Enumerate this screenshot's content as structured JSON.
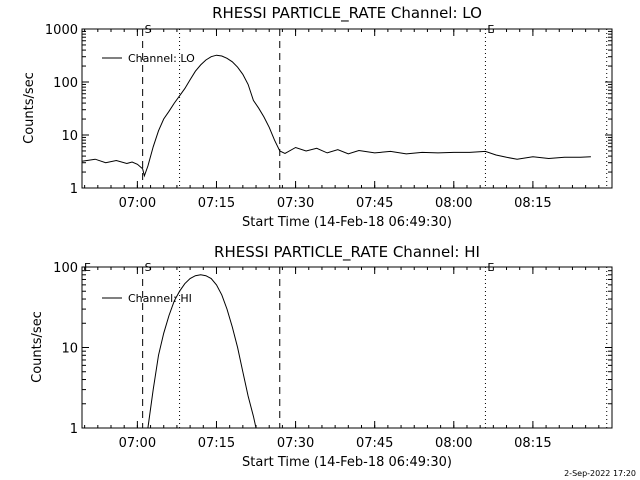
{
  "chart_data": [
    {
      "type": "line",
      "title": "RHESSI PARTICLE_RATE Channel: LO",
      "xlabel": "Start Time (14-Feb-18 06:49:30)",
      "ylabel": "Counts/sec",
      "yscale": "log",
      "ylim": [
        1,
        1000
      ],
      "yticks": [
        1,
        10,
        100,
        1000
      ],
      "ytick_labels": [
        "1",
        "10",
        "100",
        "1000"
      ],
      "xlim": [
        "06:49:30",
        "08:30:00"
      ],
      "xticks": [
        "07:00",
        "07:15",
        "07:30",
        "07:45",
        "08:00",
        "08:15"
      ],
      "legend": {
        "position": "top-left",
        "entries": [
          "Channel: LO"
        ]
      },
      "markers": [
        {
          "label": "S",
          "time": "07:01",
          "style": "dashed"
        },
        {
          "label": "",
          "time": "07:08",
          "style": "dotted"
        },
        {
          "label": "",
          "time": "07:27",
          "style": "dashed"
        },
        {
          "label": "E",
          "time": "08:06",
          "style": "dotted"
        },
        {
          "label": "",
          "time": "08:29",
          "style": "dotted"
        }
      ],
      "series": [
        {
          "name": "Channel: LO",
          "points": [
            [
              "06:49:30",
              3.2
            ],
            [
              "06:52",
              3.5
            ],
            [
              "06:54",
              3.0
            ],
            [
              "06:56",
              3.3
            ],
            [
              "06:58",
              2.9
            ],
            [
              "06:59",
              3.1
            ],
            [
              "07:00",
              2.8
            ],
            [
              "07:01",
              2.3
            ],
            [
              "07:01:20",
              1.7
            ],
            [
              "07:02",
              2.6
            ],
            [
              "07:03",
              6
            ],
            [
              "07:04",
              12
            ],
            [
              "07:05",
              20
            ],
            [
              "07:06",
              28
            ],
            [
              "07:07",
              40
            ],
            [
              "07:08",
              55
            ],
            [
              "07:09",
              75
            ],
            [
              "07:10",
              110
            ],
            [
              "07:11",
              160
            ],
            [
              "07:12",
              210
            ],
            [
              "07:13",
              260
            ],
            [
              "07:14",
              300
            ],
            [
              "07:15",
              320
            ],
            [
              "07:16",
              310
            ],
            [
              "07:17",
              280
            ],
            [
              "07:18",
              240
            ],
            [
              "07:19",
              190
            ],
            [
              "07:20",
              140
            ],
            [
              "07:21",
              90
            ],
            [
              "07:22",
              45
            ],
            [
              "07:23",
              32
            ],
            [
              "07:24",
              22
            ],
            [
              "07:25",
              14
            ],
            [
              "07:26",
              8
            ],
            [
              "07:27",
              5
            ],
            [
              "07:28",
              4.5
            ],
            [
              "07:30",
              5.8
            ],
            [
              "07:32",
              5.0
            ],
            [
              "07:34",
              5.6
            ],
            [
              "07:36",
              4.6
            ],
            [
              "07:38",
              5.3
            ],
            [
              "07:40",
              4.4
            ],
            [
              "07:42",
              5.1
            ],
            [
              "07:45",
              4.6
            ],
            [
              "07:48",
              4.9
            ],
            [
              "07:51",
              4.4
            ],
            [
              "07:54",
              4.7
            ],
            [
              "07:57",
              4.6
            ],
            [
              "08:00",
              4.7
            ],
            [
              "08:03",
              4.7
            ],
            [
              "08:06",
              4.9
            ],
            [
              "08:08",
              4.2
            ],
            [
              "08:10",
              3.8
            ],
            [
              "08:12",
              3.5
            ],
            [
              "08:15",
              3.9
            ],
            [
              "08:18",
              3.6
            ],
            [
              "08:21",
              3.8
            ],
            [
              "08:24",
              3.8
            ],
            [
              "08:26",
              3.9
            ]
          ]
        }
      ]
    },
    {
      "type": "line",
      "title": "RHESSI PARTICLE_RATE Channel: HI",
      "xlabel": "Start Time (14-Feb-18 06:49:30)",
      "ylabel": "Counts/sec",
      "yscale": "log",
      "ylim": [
        1,
        100
      ],
      "yticks": [
        1,
        10,
        100
      ],
      "ytick_labels": [
        "1",
        "10",
        "100"
      ],
      "xlim": [
        "06:49:30",
        "08:30:00"
      ],
      "xticks": [
        "07:00",
        "07:15",
        "07:30",
        "07:45",
        "08:00",
        "08:15"
      ],
      "legend": {
        "position": "top-left",
        "entries": [
          "Channel: HI"
        ]
      },
      "markers": [
        {
          "label": "E",
          "time": "06:49:30",
          "style": "none"
        },
        {
          "label": "S",
          "time": "07:01",
          "style": "dashed"
        },
        {
          "label": "",
          "time": "07:08",
          "style": "dotted"
        },
        {
          "label": "",
          "time": "07:27",
          "style": "dashed"
        },
        {
          "label": "E",
          "time": "08:06",
          "style": "dotted"
        },
        {
          "label": "",
          "time": "08:29",
          "style": "dotted"
        }
      ],
      "series": [
        {
          "name": "Channel: HI",
          "points": [
            [
              "07:02",
              1.0
            ],
            [
              "07:03",
              3
            ],
            [
              "07:04",
              8
            ],
            [
              "07:05",
              15
            ],
            [
              "07:06",
              25
            ],
            [
              "07:07",
              38
            ],
            [
              "07:08",
              50
            ],
            [
              "07:09",
              62
            ],
            [
              "07:10",
              72
            ],
            [
              "07:11",
              78
            ],
            [
              "07:12",
              80
            ],
            [
              "07:13",
              78
            ],
            [
              "07:14",
              72
            ],
            [
              "07:15",
              60
            ],
            [
              "07:16",
              45
            ],
            [
              "07:17",
              30
            ],
            [
              "07:18",
              18
            ],
            [
              "07:19",
              10
            ],
            [
              "07:20",
              5
            ],
            [
              "07:21",
              2.5
            ],
            [
              "07:22",
              1.4
            ],
            [
              "07:22:30",
              1.0
            ]
          ]
        }
      ]
    }
  ],
  "footer": {
    "stamp": "2-Sep-2022 17:20"
  }
}
